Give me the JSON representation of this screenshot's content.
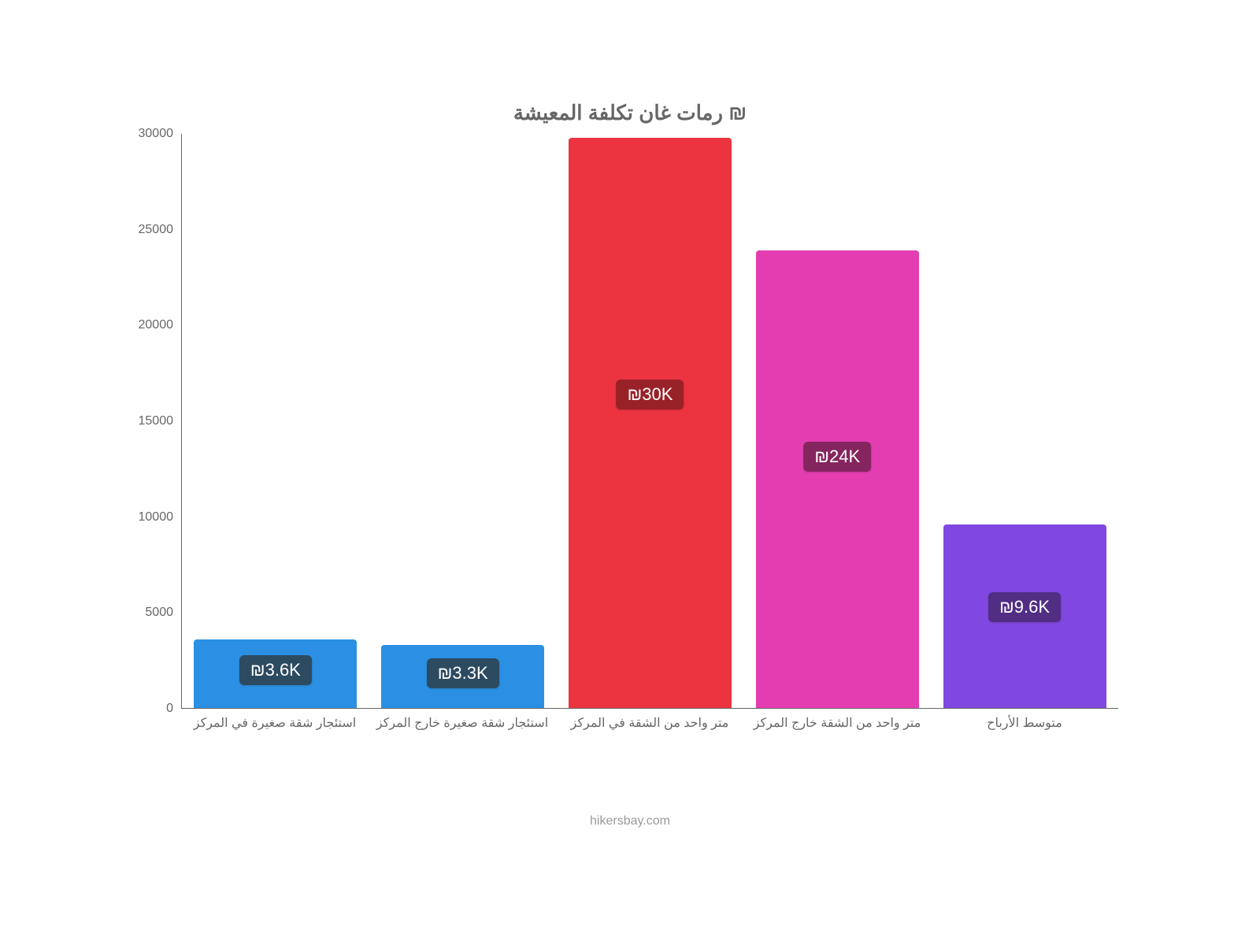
{
  "chart": {
    "type": "bar",
    "title": "رمات غان تكلفة المعيشة ₪",
    "title_fontsize": 26,
    "title_color": "#666666",
    "background_color": "#ffffff",
    "axis_color": "#666666",
    "tick_font_color": "#666666",
    "ytick_fontsize": 16,
    "xtick_fontsize": 16,
    "ymin": 0,
    "ymax": 30000,
    "ytick_step": 5000,
    "yticks": [
      "0",
      "5000",
      "10000",
      "15000",
      "20000",
      "25000",
      "30000"
    ],
    "bar_width_ratio": 0.87,
    "categories": [
      "استئجار شقة صغيرة في المركز",
      "استئجار شقة صغيرة خارج المركز",
      "متر واحد من الشقة في المركز",
      "متر واحد من الشقة خارج المركز",
      "متوسط الأرباح"
    ],
    "values": [
      3600,
      3300,
      29800,
      23900,
      9600
    ],
    "bar_colors": [
      "#2b90e3",
      "#2b90e3",
      "#eb3440",
      "#e33db1",
      "#8048e0"
    ],
    "value_labels": [
      "₪3.6K",
      "₪3.3K",
      "₪30K",
      "₪24K",
      "₪9.6K"
    ],
    "badge_bg_colors": [
      "#2d4b60",
      "#2d4b60",
      "#992128",
      "#85255f",
      "#512d84"
    ],
    "badge_fontsize": 22,
    "attribution": "hikersbay.com",
    "attribution_color": "#999999",
    "attribution_fontsize": 16
  }
}
